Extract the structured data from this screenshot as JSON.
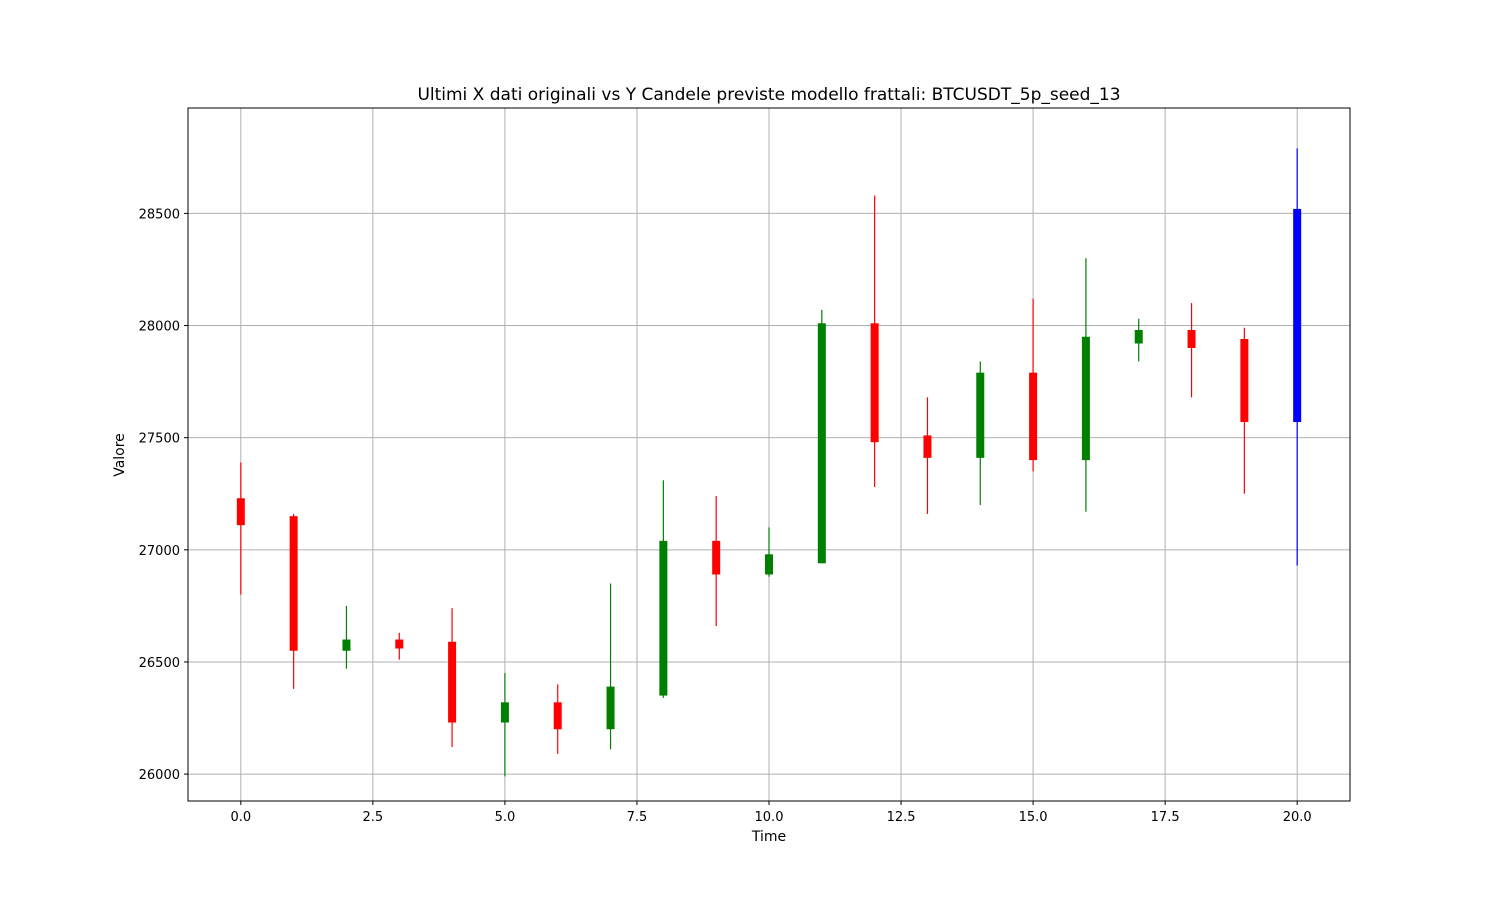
{
  "chart_data": {
    "type": "candlestick",
    "title": "Ultimi X dati originali vs Y Candele previste modello frattali: BTCUSDT_5p_seed_13",
    "xlabel": "Time",
    "ylabel": "Valore",
    "xlim": [
      -1,
      21
    ],
    "ylim": [
      25880,
      28970
    ],
    "xticks": [
      0.0,
      2.5,
      5.0,
      7.5,
      10.0,
      12.5,
      15.0,
      17.5,
      20.0
    ],
    "xtick_labels": [
      "0.0",
      "2.5",
      "5.0",
      "7.5",
      "10.0",
      "12.5",
      "15.0",
      "17.5",
      "20.0"
    ],
    "yticks": [
      26000,
      26500,
      27000,
      27500,
      28000,
      28500
    ],
    "ytick_labels": [
      "26000",
      "26500",
      "27000",
      "27500",
      "28000",
      "28500"
    ],
    "grid": true,
    "colors": {
      "up": "#008000",
      "down": "#ff0000",
      "predicted": "#0000ff"
    },
    "candles": [
      {
        "x": 0,
        "open": 27230,
        "high": 27390,
        "low": 26800,
        "close": 27110,
        "color": "down"
      },
      {
        "x": 1,
        "open": 27150,
        "high": 27160,
        "low": 26380,
        "close": 26550,
        "color": "down"
      },
      {
        "x": 2,
        "open": 26550,
        "high": 26750,
        "low": 26470,
        "close": 26600,
        "color": "up"
      },
      {
        "x": 3,
        "open": 26600,
        "high": 26630,
        "low": 26510,
        "close": 26560,
        "color": "down"
      },
      {
        "x": 4,
        "open": 26590,
        "high": 26740,
        "low": 26120,
        "close": 26230,
        "color": "down"
      },
      {
        "x": 5,
        "open": 26230,
        "high": 26450,
        "low": 25990,
        "close": 26320,
        "color": "up"
      },
      {
        "x": 6,
        "open": 26320,
        "high": 26400,
        "low": 26090,
        "close": 26200,
        "color": "down"
      },
      {
        "x": 7,
        "open": 26200,
        "high": 26850,
        "low": 26110,
        "close": 26390,
        "color": "up"
      },
      {
        "x": 8,
        "open": 26350,
        "high": 27310,
        "low": 26340,
        "close": 27040,
        "color": "up"
      },
      {
        "x": 9,
        "open": 27040,
        "high": 27240,
        "low": 26660,
        "close": 26890,
        "color": "down"
      },
      {
        "x": 10,
        "open": 26890,
        "high": 27100,
        "low": 26880,
        "close": 26980,
        "color": "up"
      },
      {
        "x": 11,
        "open": 26940,
        "high": 28070,
        "low": 26940,
        "close": 28010,
        "color": "up"
      },
      {
        "x": 12,
        "open": 28010,
        "high": 28580,
        "low": 27280,
        "close": 27480,
        "color": "down"
      },
      {
        "x": 13,
        "open": 27510,
        "high": 27680,
        "low": 27160,
        "close": 27410,
        "color": "down"
      },
      {
        "x": 14,
        "open": 27410,
        "high": 27840,
        "low": 27200,
        "close": 27790,
        "color": "up"
      },
      {
        "x": 15,
        "open": 27790,
        "high": 28120,
        "low": 27350,
        "close": 27400,
        "color": "down"
      },
      {
        "x": 16,
        "open": 27400,
        "high": 28300,
        "low": 27170,
        "close": 27950,
        "color": "up"
      },
      {
        "x": 17,
        "open": 27920,
        "high": 28030,
        "low": 27840,
        "close": 27980,
        "color": "up"
      },
      {
        "x": 18,
        "open": 27980,
        "high": 28100,
        "low": 27680,
        "close": 27900,
        "color": "down"
      },
      {
        "x": 19,
        "open": 27940,
        "high": 27990,
        "low": 27250,
        "close": 27570,
        "color": "down"
      },
      {
        "x": 20,
        "open": 27570,
        "high": 28790,
        "low": 26930,
        "close": 28520,
        "color": "predicted"
      }
    ]
  }
}
